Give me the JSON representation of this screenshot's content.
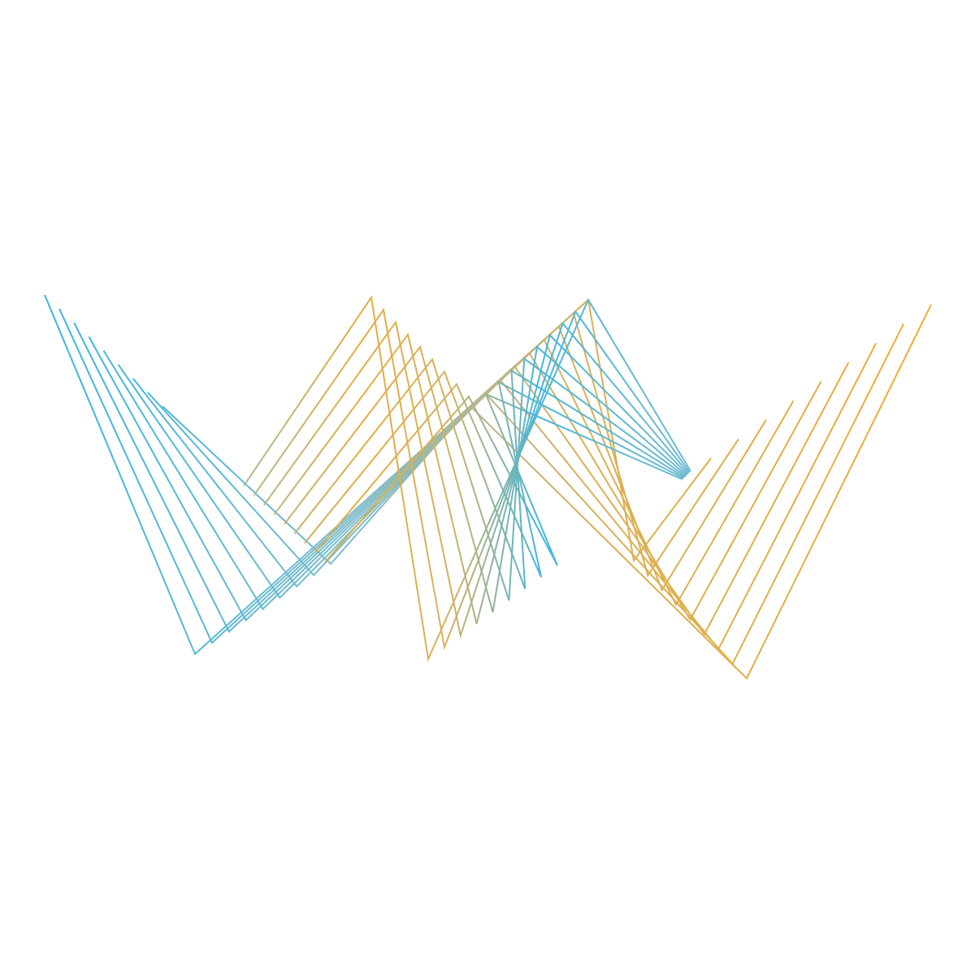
{
  "artwork": {
    "type": "logo",
    "description_visible_text": "",
    "colors": {
      "blue": "#3fb6df",
      "gold": "#e8ae37",
      "background": "#ffffff"
    },
    "strand_count": 9,
    "style": "string-art zigzag"
  }
}
